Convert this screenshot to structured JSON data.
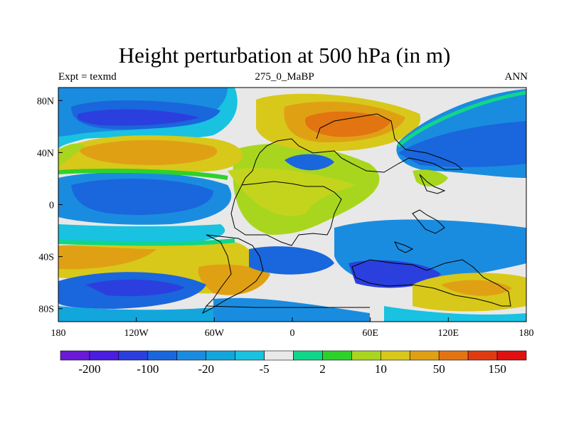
{
  "title": "Height perturbation at 500 hPa (in m)",
  "subtitle_left": "Expt = texmd",
  "subtitle_center": "275_0_MaBP",
  "subtitle_right": "ANN",
  "chart_data": {
    "type": "heatmap",
    "variable": "500 hPa geopotential height perturbation",
    "units": "m",
    "x_axis": {
      "range": [
        -180,
        180
      ],
      "ticks": [
        -180,
        -120,
        -60,
        0,
        60,
        120,
        180
      ],
      "tick_labels": [
        "180",
        "120W",
        "60W",
        "0",
        "60E",
        "120E",
        "180"
      ]
    },
    "y_axis": {
      "range": [
        -90,
        90
      ],
      "ticks": [
        80,
        40,
        0,
        -40,
        -80
      ],
      "tick_labels": [
        "80N",
        "40N",
        "0",
        "40S",
        "80S"
      ]
    },
    "colorbar": {
      "colors": [
        "#6a1ad6",
        "#4a1ee0",
        "#2b3fde",
        "#1a66dc",
        "#1a8ce0",
        "#13a6dd",
        "#19c2e0",
        "#e8e8e8",
        "#10d68a",
        "#2ed12a",
        "#a8d61e",
        "#d8c81a",
        "#e0a014",
        "#e27411",
        "#e03a10",
        "#e01010"
      ],
      "tick_labels": [
        "-200",
        "-100",
        "-20",
        "-5",
        "2",
        "10",
        "50",
        "150"
      ]
    },
    "features": [
      {
        "name": "strong positive high",
        "region": "Eurasia north",
        "lon": 55,
        "lat": 57,
        "level": "100-150"
      },
      {
        "name": "positive band",
        "region": "North Pacific / North Atlantic",
        "lon": -100,
        "lat": 38,
        "level": "50-100"
      },
      {
        "name": "positive high",
        "region": "South Atlantic",
        "lon": -40,
        "lat": -62,
        "level": "50-100"
      },
      {
        "name": "negative low",
        "region": "North Pacific",
        "lon": -130,
        "lat": 62,
        "level": "-100 to -20"
      },
      {
        "name": "negative low",
        "region": "Southern Ocean",
        "lon": -130,
        "lat": -65,
        "level": "-100 to -20"
      },
      {
        "name": "negative low",
        "region": "South Indian Ocean",
        "lon": 75,
        "lat": -55,
        "level": "-100 to -20"
      },
      {
        "name": "negative band",
        "region": "Northeast Asia / Pacific",
        "lon": 140,
        "lat": 40,
        "level": "-100 to -20"
      }
    ]
  }
}
